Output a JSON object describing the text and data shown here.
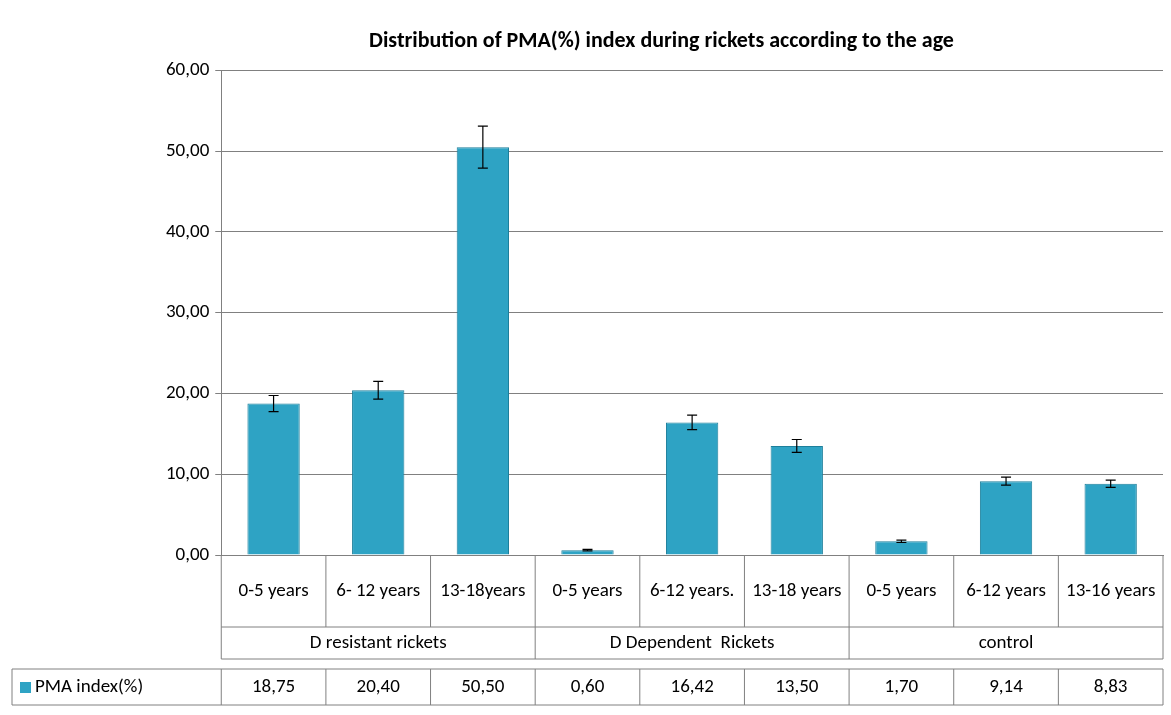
{
  "chart_data": {
    "type": "bar",
    "title": "Distribution of PMA(%) index during rickets according to the age",
    "categories": [
      "0-5 years",
      "6- 12 years",
      "13-18years",
      "0-5 years",
      "6-12 years.",
      "13-18 years",
      "0-5 years",
      "6-12 years",
      "13-16 years"
    ],
    "annotations": [
      "D resistant rickets",
      "D Dependent  Rickets",
      "control"
    ],
    "series": [
      {
        "name": "PMA index(%)",
        "color": "#2ea3c4",
        "values": [
          18.75,
          20.4,
          50.5,
          0.6,
          16.42,
          13.5,
          1.7,
          9.14,
          8.83
        ],
        "value_labels": [
          "18,75",
          "20,40",
          "50,50",
          "0,60",
          "16,42",
          "13,50",
          "1,70",
          "9,14",
          "8,83"
        ],
        "errors": [
          1,
          1.1,
          2.6,
          0.1,
          0.9,
          0.8,
          0.15,
          0.5,
          0.45
        ]
      }
    ],
    "ylim": [
      0,
      60
    ],
    "yticks": [
      {
        "value": 0,
        "label": "0,00"
      },
      {
        "value": 10,
        "label": "10,00"
      },
      {
        "value": 20,
        "label": "20,00"
      },
      {
        "value": 30,
        "label": "30,00"
      },
      {
        "value": 40,
        "label": "40,00"
      },
      {
        "value": 50,
        "label": "50,00"
      },
      {
        "value": 60,
        "label": "60,00"
      }
    ],
    "grid": "y",
    "legend": "bottom"
  }
}
